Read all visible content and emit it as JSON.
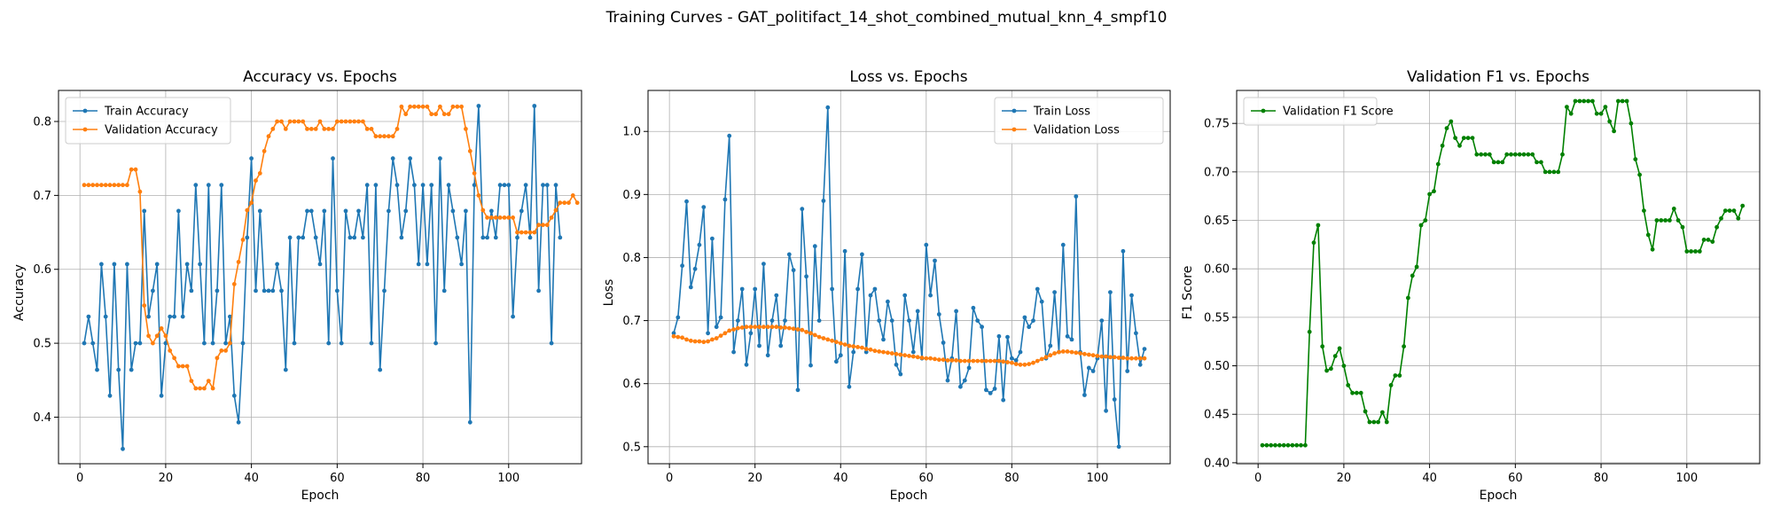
{
  "suptitle": "Training Curves - GAT_politifact_14_shot_combined_mutual_knn_4_smpf10",
  "colors": {
    "train": "#1f77b4",
    "validation": "#ff7f0e",
    "f1": "#008000",
    "grid": "#b0b0b0"
  },
  "chart_data": [
    {
      "type": "line",
      "title": "Accuracy vs. Epochs",
      "xlabel": "Epoch",
      "ylabel": "Accuracy",
      "xlim": [
        -5,
        117
      ],
      "ylim": [
        0.337,
        0.842
      ],
      "xticks": [
        0,
        20,
        40,
        60,
        80,
        100
      ],
      "yticks": [
        0.4,
        0.5,
        0.6,
        0.7,
        0.8
      ],
      "grid": true,
      "legend": "upper-left",
      "x_start": 1,
      "series": [
        {
          "name": "Train Accuracy",
          "color": "#1f77b4",
          "values": [
            0.5,
            0.536,
            0.5,
            0.464,
            0.607,
            0.536,
            0.429,
            0.607,
            0.464,
            0.357,
            0.607,
            0.464,
            0.5,
            0.5,
            0.679,
            0.536,
            0.571,
            0.607,
            0.429,
            0.5,
            0.536,
            0.536,
            0.679,
            0.536,
            0.607,
            0.571,
            0.714,
            0.607,
            0.5,
            0.714,
            0.5,
            0.571,
            0.714,
            0.5,
            0.536,
            0.429,
            0.393,
            0.5,
            0.643,
            0.75,
            0.571,
            0.679,
            0.571,
            0.571,
            0.571,
            0.607,
            0.571,
            0.464,
            0.643,
            0.5,
            0.643,
            0.643,
            0.679,
            0.679,
            0.643,
            0.607,
            0.679,
            0.5,
            0.75,
            0.571,
            0.5,
            0.679,
            0.643,
            0.643,
            0.679,
            0.643,
            0.714,
            0.5,
            0.714,
            0.464,
            0.571,
            0.679,
            0.75,
            0.714,
            0.643,
            0.679,
            0.75,
            0.714,
            0.607,
            0.714,
            0.607,
            0.714,
            0.5,
            0.75,
            0.571,
            0.714,
            0.679,
            0.643,
            0.607,
            0.679,
            0.393,
            0.714,
            0.821,
            0.643,
            0.643,
            0.679,
            0.643,
            0.714,
            0.714,
            0.714,
            0.536,
            0.643,
            0.679,
            0.714,
            0.643,
            0.821,
            0.571,
            0.714,
            0.714,
            0.5,
            0.714,
            0.643
          ]
        },
        {
          "name": "Validation Accuracy",
          "color": "#ff7f0e",
          "values": [
            0.714,
            0.714,
            0.714,
            0.714,
            0.714,
            0.714,
            0.714,
            0.714,
            0.714,
            0.714,
            0.714,
            0.735,
            0.735,
            0.705,
            0.551,
            0.51,
            0.5,
            0.51,
            0.52,
            0.51,
            0.49,
            0.48,
            0.469,
            0.469,
            0.469,
            0.449,
            0.439,
            0.439,
            0.439,
            0.449,
            0.439,
            0.48,
            0.49,
            0.49,
            0.5,
            0.58,
            0.61,
            0.64,
            0.68,
            0.69,
            0.72,
            0.73,
            0.76,
            0.78,
            0.79,
            0.8,
            0.8,
            0.79,
            0.8,
            0.8,
            0.8,
            0.8,
            0.79,
            0.79,
            0.79,
            0.8,
            0.79,
            0.79,
            0.79,
            0.8,
            0.8,
            0.8,
            0.8,
            0.8,
            0.8,
            0.8,
            0.79,
            0.79,
            0.78,
            0.78,
            0.78,
            0.78,
            0.78,
            0.79,
            0.82,
            0.81,
            0.82,
            0.82,
            0.82,
            0.82,
            0.82,
            0.81,
            0.81,
            0.82,
            0.81,
            0.81,
            0.82,
            0.82,
            0.82,
            0.79,
            0.76,
            0.73,
            0.7,
            0.68,
            0.67,
            0.67,
            0.67,
            0.67,
            0.67,
            0.67,
            0.67,
            0.65,
            0.65,
            0.65,
            0.65,
            0.65,
            0.66,
            0.66,
            0.66,
            0.67,
            0.68,
            0.69,
            0.69,
            0.69,
            0.7,
            0.69
          ]
        }
      ]
    },
    {
      "type": "line",
      "title": "Loss vs. Epochs",
      "xlabel": "Epoch",
      "ylabel": "Loss",
      "xlim": [
        -5,
        117
      ],
      "ylim": [
        0.473,
        1.065
      ],
      "xticks": [
        0,
        20,
        40,
        60,
        80,
        100
      ],
      "yticks": [
        0.5,
        0.6,
        0.7,
        0.8,
        0.9,
        1.0
      ],
      "grid": true,
      "legend": "upper-right",
      "x_start": 1,
      "series": [
        {
          "name": "Train Loss",
          "color": "#1f77b4",
          "values": [
            0.68,
            0.705,
            0.787,
            0.889,
            0.753,
            0.782,
            0.82,
            0.88,
            0.68,
            0.83,
            0.69,
            0.705,
            0.892,
            0.993,
            0.65,
            0.7,
            0.75,
            0.63,
            0.68,
            0.75,
            0.66,
            0.79,
            0.645,
            0.7,
            0.74,
            0.66,
            0.7,
            0.805,
            0.78,
            0.59,
            0.877,
            0.77,
            0.629,
            0.818,
            0.7,
            0.89,
            1.038,
            0.75,
            0.635,
            0.645,
            0.81,
            0.595,
            0.65,
            0.75,
            0.805,
            0.65,
            0.74,
            0.75,
            0.7,
            0.67,
            0.73,
            0.7,
            0.63,
            0.615,
            0.74,
            0.7,
            0.65,
            0.715,
            0.64,
            0.82,
            0.74,
            0.795,
            0.71,
            0.665,
            0.605,
            0.64,
            0.715,
            0.595,
            0.605,
            0.625,
            0.72,
            0.7,
            0.69,
            0.59,
            0.585,
            0.592,
            0.675,
            0.574,
            0.674,
            0.64,
            0.637,
            0.65,
            0.705,
            0.69,
            0.7,
            0.75,
            0.73,
            0.64,
            0.66,
            0.745,
            0.65,
            0.82,
            0.675,
            0.67,
            0.897,
            0.65,
            0.582,
            0.625,
            0.62,
            0.64,
            0.7,
            0.557,
            0.745,
            0.575,
            0.5,
            0.81,
            0.62,
            0.74,
            0.68,
            0.63,
            0.655
          ]
        },
        {
          "name": "Validation Loss",
          "color": "#ff7f0e",
          "values": [
            0.675,
            0.674,
            0.673,
            0.67,
            0.668,
            0.667,
            0.667,
            0.666,
            0.667,
            0.67,
            0.672,
            0.676,
            0.68,
            0.684,
            0.686,
            0.688,
            0.689,
            0.69,
            0.69,
            0.69,
            0.69,
            0.69,
            0.69,
            0.69,
            0.69,
            0.689,
            0.689,
            0.688,
            0.687,
            0.686,
            0.685,
            0.682,
            0.68,
            0.677,
            0.674,
            0.672,
            0.67,
            0.668,
            0.666,
            0.664,
            0.662,
            0.66,
            0.659,
            0.658,
            0.657,
            0.655,
            0.654,
            0.652,
            0.651,
            0.65,
            0.649,
            0.648,
            0.647,
            0.646,
            0.645,
            0.644,
            0.643,
            0.642,
            0.641,
            0.64,
            0.64,
            0.639,
            0.638,
            0.638,
            0.637,
            0.637,
            0.637,
            0.636,
            0.636,
            0.636,
            0.636,
            0.636,
            0.636,
            0.636,
            0.636,
            0.636,
            0.636,
            0.635,
            0.634,
            0.633,
            0.631,
            0.63,
            0.63,
            0.631,
            0.633,
            0.636,
            0.639,
            0.642,
            0.645,
            0.648,
            0.65,
            0.651,
            0.651,
            0.65,
            0.649,
            0.648,
            0.647,
            0.646,
            0.645,
            0.644,
            0.643,
            0.643,
            0.642,
            0.642,
            0.641,
            0.641,
            0.64,
            0.64,
            0.64,
            0.64,
            0.64
          ]
        }
      ]
    },
    {
      "type": "line",
      "title": "Validation F1 vs. Epochs",
      "xlabel": "Epoch",
      "ylabel": "F1 Score",
      "xlim": [
        -5,
        117
      ],
      "ylim": [
        0.399,
        0.784
      ],
      "xticks": [
        0,
        20,
        40,
        60,
        80,
        100
      ],
      "yticks": [
        0.4,
        0.45,
        0.5,
        0.55,
        0.6,
        0.65,
        0.7,
        0.75
      ],
      "grid": true,
      "legend": "upper-left",
      "x_start": 1,
      "series": [
        {
          "name": "Validation F1 Score",
          "color": "#008000",
          "values": [
            0.418,
            0.418,
            0.418,
            0.418,
            0.418,
            0.418,
            0.418,
            0.418,
            0.418,
            0.418,
            0.418,
            0.535,
            0.627,
            0.645,
            0.52,
            0.495,
            0.497,
            0.51,
            0.518,
            0.5,
            0.48,
            0.472,
            0.472,
            0.472,
            0.453,
            0.442,
            0.442,
            0.442,
            0.452,
            0.442,
            0.48,
            0.49,
            0.49,
            0.52,
            0.57,
            0.593,
            0.602,
            0.645,
            0.65,
            0.677,
            0.68,
            0.708,
            0.727,
            0.745,
            0.752,
            0.735,
            0.727,
            0.735,
            0.735,
            0.735,
            0.718,
            0.718,
            0.718,
            0.718,
            0.71,
            0.71,
            0.71,
            0.718,
            0.718,
            0.718,
            0.718,
            0.718,
            0.718,
            0.718,
            0.71,
            0.71,
            0.7,
            0.7,
            0.7,
            0.7,
            0.718,
            0.767,
            0.76,
            0.773,
            0.773,
            0.773,
            0.773,
            0.773,
            0.76,
            0.76,
            0.767,
            0.752,
            0.742,
            0.773,
            0.773,
            0.773,
            0.75,
            0.713,
            0.697,
            0.66,
            0.635,
            0.62,
            0.65,
            0.65,
            0.65,
            0.65,
            0.662,
            0.65,
            0.643,
            0.618,
            0.618,
            0.618,
            0.618,
            0.63,
            0.63,
            0.628,
            0.643,
            0.652,
            0.66,
            0.66,
            0.66,
            0.652,
            0.665
          ]
        }
      ]
    }
  ]
}
